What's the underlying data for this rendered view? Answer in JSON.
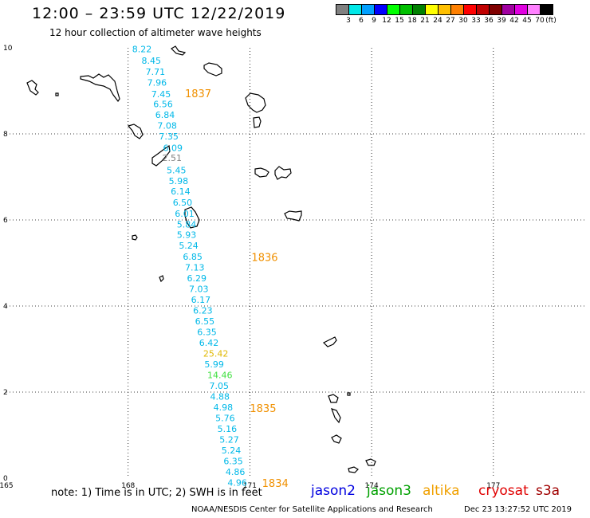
{
  "header": {
    "title": "12:00 – 23:59 UTC 12/22/2019",
    "subtitle": "12 hour collection of altimeter wave heights"
  },
  "legend": {
    "colors": [
      "#808080",
      "#00e8e8",
      "#00a0ff",
      "#0000ff",
      "#00ff00",
      "#00c000",
      "#008000",
      "#ffff00",
      "#ffc000",
      "#ff8000",
      "#ff0000",
      "#c00000",
      "#800000",
      "#a000a0",
      "#e000e0",
      "#ff80ff",
      "#000000"
    ],
    "labels": [
      "3",
      "6",
      "9",
      "12",
      "15",
      "18",
      "21",
      "24",
      "27",
      "30",
      "33",
      "36",
      "39",
      "42",
      "45",
      "70",
      "(ft)"
    ]
  },
  "axes": {
    "x_ticks": [
      "165",
      "168",
      "171",
      "174",
      "177"
    ],
    "y_ticks": [
      "10",
      "8",
      "6",
      "4",
      "2",
      "0"
    ]
  },
  "observations": [
    {
      "value": "8.22",
      "lon": 168.1,
      "lat": 9.9,
      "color": "#00b8e8"
    },
    {
      "value": "8.45",
      "lon": 168.33,
      "lat": 9.63,
      "color": "#00b8e8"
    },
    {
      "value": "7.71",
      "lon": 168.43,
      "lat": 9.37,
      "color": "#00b8e8"
    },
    {
      "value": "7.96",
      "lon": 168.47,
      "lat": 9.12,
      "color": "#00b8e8"
    },
    {
      "value": "7.45",
      "lon": 168.57,
      "lat": 8.85,
      "color": "#00b8e8"
    },
    {
      "value": "6.56",
      "lon": 168.62,
      "lat": 8.62,
      "color": "#00b8e8"
    },
    {
      "value": "6.84",
      "lon": 168.67,
      "lat": 8.37,
      "color": "#00b8e8"
    },
    {
      "value": "7.08",
      "lon": 168.72,
      "lat": 8.12,
      "color": "#00b8e8"
    },
    {
      "value": "7.35",
      "lon": 168.76,
      "lat": 7.87,
      "color": "#00b8e8"
    },
    {
      "value": "6.09",
      "lon": 168.86,
      "lat": 7.6,
      "color": "#00b8e8"
    },
    {
      "value": "2.51",
      "lon": 168.84,
      "lat": 7.37,
      "color": "#808080"
    },
    {
      "value": "5.45",
      "lon": 168.95,
      "lat": 7.08,
      "color": "#00b8e8"
    },
    {
      "value": "5.98",
      "lon": 169.0,
      "lat": 6.83,
      "color": "#00b8e8"
    },
    {
      "value": "6.14",
      "lon": 169.05,
      "lat": 6.59,
      "color": "#00b8e8"
    },
    {
      "value": "6.50",
      "lon": 169.1,
      "lat": 6.33,
      "color": "#00b8e8"
    },
    {
      "value": "6.01",
      "lon": 169.15,
      "lat": 6.07,
      "color": "#00b8e8"
    },
    {
      "value": "5.84",
      "lon": 169.2,
      "lat": 5.82,
      "color": "#00b8e8"
    },
    {
      "value": "5.93",
      "lon": 169.2,
      "lat": 5.58,
      "color": "#00b8e8"
    },
    {
      "value": "5.24",
      "lon": 169.25,
      "lat": 5.33,
      "color": "#00b8e8"
    },
    {
      "value": "6.85",
      "lon": 169.35,
      "lat": 5.07,
      "color": "#00b8e8"
    },
    {
      "value": "7.13",
      "lon": 169.4,
      "lat": 4.82,
      "color": "#00b8e8"
    },
    {
      "value": "6.29",
      "lon": 169.45,
      "lat": 4.57,
      "color": "#00b8e8"
    },
    {
      "value": "7.03",
      "lon": 169.5,
      "lat": 4.32,
      "color": "#00b8e8"
    },
    {
      "value": "6.17",
      "lon": 169.55,
      "lat": 4.07,
      "color": "#00b8e8"
    },
    {
      "value": "6.23",
      "lon": 169.6,
      "lat": 3.82,
      "color": "#00b8e8"
    },
    {
      "value": "6.55",
      "lon": 169.65,
      "lat": 3.57,
      "color": "#00b8e8"
    },
    {
      "value": "6.35",
      "lon": 169.7,
      "lat": 3.32,
      "color": "#00b8e8"
    },
    {
      "value": "6.42",
      "lon": 169.75,
      "lat": 3.07,
      "color": "#00b8e8"
    },
    {
      "value": "25.42",
      "lon": 169.85,
      "lat": 2.82,
      "color": "#e0b800"
    },
    {
      "value": "5.99",
      "lon": 169.88,
      "lat": 2.57,
      "color": "#00b8e8"
    },
    {
      "value": "14.46",
      "lon": 169.95,
      "lat": 2.32,
      "color": "#40e040"
    },
    {
      "value": "7.05",
      "lon": 170.0,
      "lat": 2.07,
      "color": "#00b8e8"
    },
    {
      "value": "4.88",
      "lon": 170.02,
      "lat": 1.82,
      "color": "#00b8e8"
    },
    {
      "value": "4.98",
      "lon": 170.1,
      "lat": 1.57,
      "color": "#00b8e8"
    },
    {
      "value": "5.76",
      "lon": 170.15,
      "lat": 1.32,
      "color": "#00b8e8"
    },
    {
      "value": "5.16",
      "lon": 170.2,
      "lat": 1.07,
      "color": "#00b8e8"
    },
    {
      "value": "5.27",
      "lon": 170.25,
      "lat": 0.82,
      "color": "#00b8e8"
    },
    {
      "value": "5.24",
      "lon": 170.3,
      "lat": 0.57,
      "color": "#00b8e8"
    },
    {
      "value": "6.35",
      "lon": 170.35,
      "lat": 0.32,
      "color": "#00b8e8"
    },
    {
      "value": "4.86",
      "lon": 170.4,
      "lat": 0.07,
      "color": "#00b8e8"
    },
    {
      "value": "4.96",
      "lon": 170.45,
      "lat": -0.18,
      "color": "#00b8e8"
    }
  ],
  "time_labels": [
    {
      "text": "1837",
      "lon": 169.4,
      "lat": 8.85
    },
    {
      "text": "1836",
      "lon": 171.04,
      "lat": 5.05
    },
    {
      "text": "1835",
      "lon": 171.0,
      "lat": 1.54
    },
    {
      "text": "1834",
      "lon": 171.3,
      "lat": -0.2
    }
  ],
  "time_label_color": "#f09000",
  "footer": {
    "note": "note:  1) Time is in UTC;  2) SWH is in feet",
    "satellites": [
      {
        "name": "jason2",
        "color": "#0000e0"
      },
      {
        "name": "jason3",
        "color": "#00a000"
      },
      {
        "name": "altika",
        "color": "#f0a000"
      },
      {
        "name": "cryosat",
        "color": "#e00000"
      },
      {
        "name": "s3a",
        "color": "#a00000"
      }
    ],
    "credit": "NOAA/NESDIS Center for Satellite Applications and Research",
    "date": "Dec 23 13:27:52 UTC 2019"
  }
}
